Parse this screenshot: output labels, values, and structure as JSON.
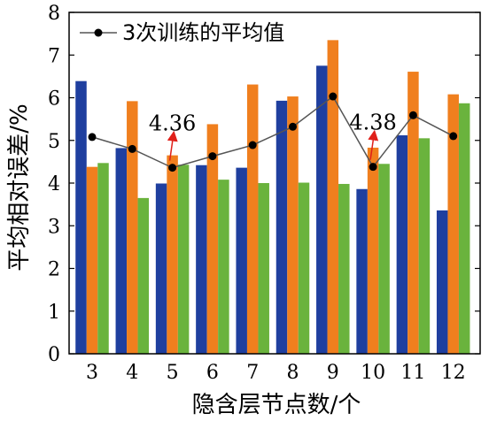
{
  "chart_data": {
    "type": "bar",
    "xlabel": "隐含层节点数/个",
    "ylabel": "平均相对误差/%",
    "ylim": [
      0,
      8
    ],
    "yticks": [
      0,
      1,
      2,
      3,
      4,
      5,
      6,
      7,
      8
    ],
    "categories": [
      "3",
      "4",
      "5",
      "6",
      "7",
      "8",
      "9",
      "10",
      "11",
      "12"
    ],
    "series": [
      {
        "values": [
          6.39,
          4.82,
          3.99,
          4.42,
          4.36,
          5.93,
          6.75,
          3.86,
          5.12,
          3.36
        ],
        "color": "#1f3f9f"
      },
      {
        "values": [
          4.38,
          5.92,
          4.65,
          5.38,
          6.31,
          6.03,
          7.35,
          4.83,
          6.61,
          6.08
        ],
        "color": "#f07f1e"
      },
      {
        "values": [
          4.47,
          3.65,
          4.43,
          4.08,
          4.0,
          4.01,
          3.98,
          4.45,
          5.05,
          5.87
        ],
        "color": "#6ab33d"
      }
    ],
    "line_series": {
      "name": "3次训练的平均值",
      "values": [
        5.08,
        4.8,
        4.36,
        4.63,
        4.89,
        5.32,
        6.03,
        4.38,
        5.59,
        5.1
      ],
      "color": "#000000"
    },
    "legend_position": "top-left",
    "annotations": [
      {
        "text": "4.36",
        "category": "5",
        "value": 4.36,
        "arrow_color": "#e0201a"
      },
      {
        "text": "4.38",
        "category": "10",
        "value": 4.38,
        "arrow_color": "#e0201a"
      }
    ]
  }
}
